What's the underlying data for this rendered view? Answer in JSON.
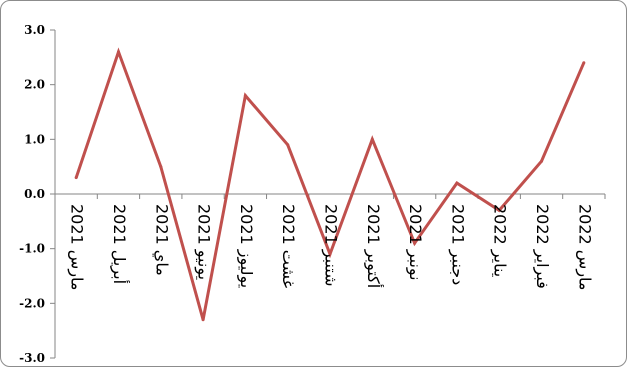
{
  "chart_data": {
    "type": "line",
    "categories": [
      "مارس 2021",
      "أبريل 2021",
      "ماي 2021",
      "يونيو 2021",
      "يوليوز 2021",
      "غشت 2021",
      "شتنبر 2021",
      "أكتوبر 2021",
      "نونبر 2021",
      "دجنبر 2021",
      "يناير 2022",
      "فبراير 2022",
      "مارس 2022"
    ],
    "values": [
      0.3,
      2.6,
      0.5,
      -2.3,
      1.8,
      0.9,
      -1.1,
      1.0,
      -0.9,
      0.2,
      -0.3,
      0.6,
      2.4
    ],
    "y_tick_labels": [
      "3.0",
      "2.0",
      "1.0",
      "0.0",
      "-1.0",
      "-2.0",
      "-3.0"
    ],
    "ylim": [
      -3.0,
      3.0
    ],
    "grid": false,
    "legend": "none",
    "title": "",
    "xlabel": "",
    "ylabel": "",
    "line_color": "#c0504d",
    "axis_color": "#868686"
  }
}
